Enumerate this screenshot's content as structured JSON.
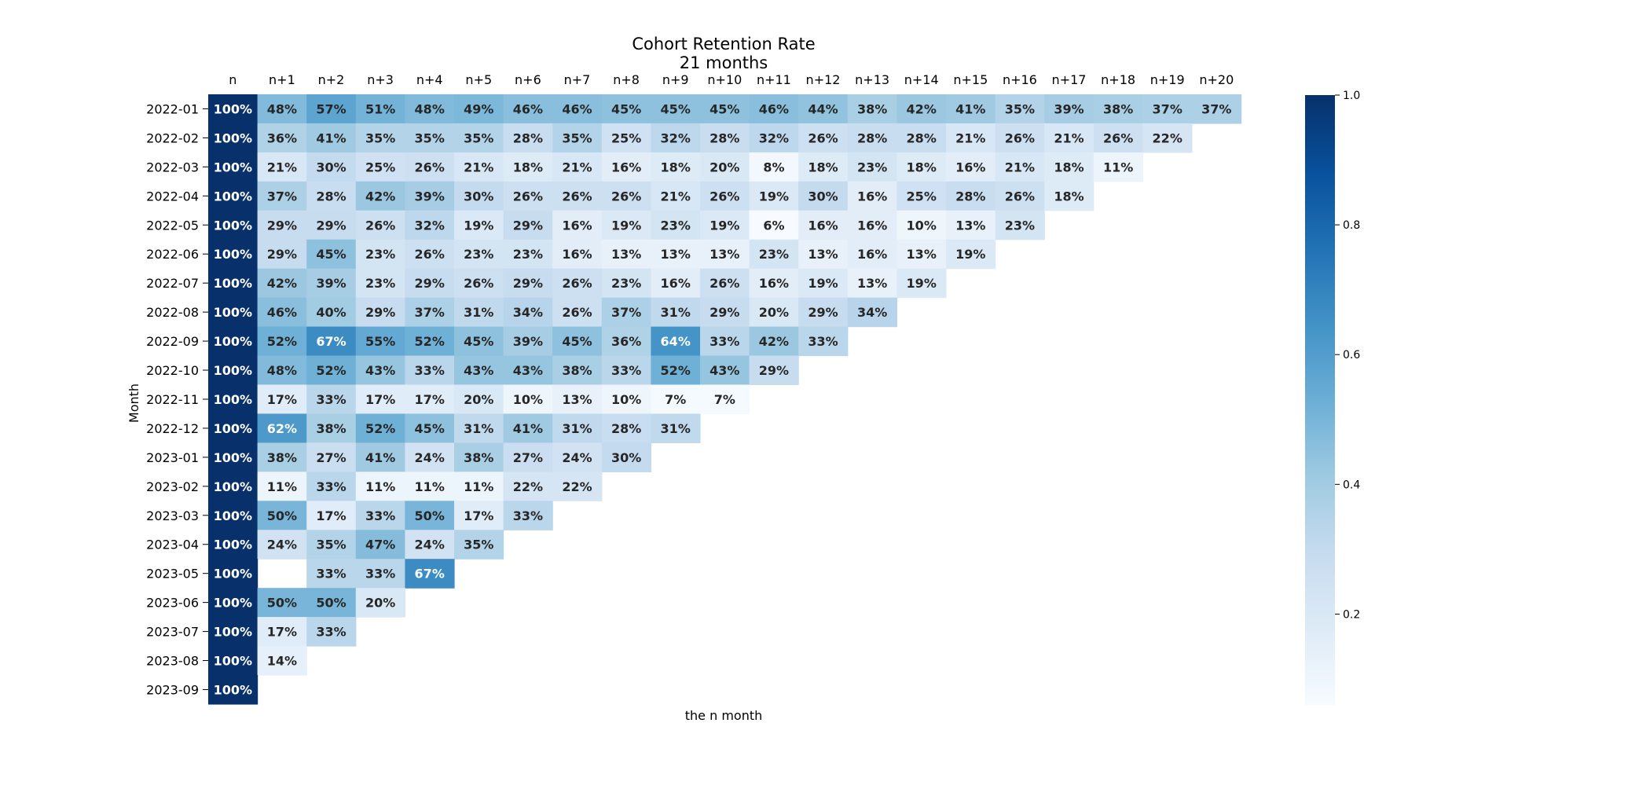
{
  "chart_data": {
    "type": "heatmap",
    "title": "Cohort Retention Rate",
    "subtitle": "21 months",
    "xlabel": "the n month",
    "ylabel": "Month",
    "colormap": "Blues",
    "value_range": [
      0.06,
      1.0
    ],
    "colorbar_ticks": [
      "0.2",
      "0.4",
      "0.6",
      "0.8",
      "1.0"
    ],
    "colorbar_tick_values": [
      0.2,
      0.4,
      0.6,
      0.8,
      1.0
    ],
    "x_labels": [
      "n",
      "n+1",
      "n+2",
      "n+3",
      "n+4",
      "n+5",
      "n+6",
      "n+7",
      "n+8",
      "n+9",
      "n+10",
      "n+11",
      "n+12",
      "n+13",
      "n+14",
      "n+15",
      "n+16",
      "n+17",
      "n+18",
      "n+19",
      "n+20"
    ],
    "y_labels": [
      "2022-01",
      "2022-02",
      "2022-03",
      "2022-04",
      "2022-05",
      "2022-06",
      "2022-07",
      "2022-08",
      "2022-09",
      "2022-10",
      "2022-11",
      "2022-12",
      "2023-01",
      "2023-02",
      "2023-03",
      "2023-04",
      "2023-05",
      "2023-06",
      "2023-07",
      "2023-08",
      "2023-09"
    ],
    "values": [
      [
        100,
        48,
        57,
        51,
        48,
        49,
        46,
        46,
        45,
        45,
        45,
        46,
        44,
        38,
        42,
        41,
        35,
        39,
        38,
        37,
        37
      ],
      [
        100,
        36,
        41,
        35,
        35,
        35,
        28,
        35,
        25,
        32,
        28,
        32,
        26,
        28,
        28,
        21,
        26,
        21,
        26,
        22
      ],
      [
        100,
        21,
        30,
        25,
        26,
        21,
        18,
        21,
        16,
        18,
        20,
        8,
        18,
        23,
        18,
        16,
        21,
        18,
        11
      ],
      [
        100,
        37,
        28,
        42,
        39,
        30,
        26,
        26,
        26,
        21,
        26,
        19,
        30,
        16,
        25,
        28,
        26,
        18
      ],
      [
        100,
        29,
        29,
        26,
        32,
        19,
        29,
        16,
        19,
        23,
        19,
        6,
        16,
        16,
        10,
        13,
        23
      ],
      [
        100,
        29,
        45,
        23,
        26,
        23,
        23,
        16,
        13,
        13,
        13,
        23,
        13,
        16,
        13,
        19
      ],
      [
        100,
        42,
        39,
        23,
        29,
        26,
        29,
        26,
        23,
        16,
        26,
        16,
        19,
        13,
        19
      ],
      [
        100,
        46,
        40,
        29,
        37,
        31,
        34,
        26,
        37,
        31,
        29,
        20,
        29,
        34
      ],
      [
        100,
        52,
        67,
        55,
        52,
        45,
        39,
        45,
        36,
        64,
        33,
        42,
        33
      ],
      [
        100,
        48,
        52,
        43,
        33,
        43,
        43,
        38,
        33,
        52,
        43,
        29
      ],
      [
        100,
        17,
        33,
        17,
        17,
        20,
        10,
        13,
        10,
        7,
        7
      ],
      [
        100,
        62,
        38,
        52,
        45,
        31,
        41,
        31,
        28,
        31
      ],
      [
        100,
        38,
        27,
        41,
        24,
        38,
        27,
        24,
        30
      ],
      [
        100,
        11,
        33,
        11,
        11,
        11,
        22,
        22
      ],
      [
        100,
        50,
        17,
        33,
        50,
        17,
        33
      ],
      [
        100,
        24,
        35,
        47,
        24,
        35
      ],
      [
        100,
        null,
        33,
        33,
        67
      ],
      [
        100,
        50,
        50,
        20
      ],
      [
        100,
        17,
        33
      ],
      [
        100,
        14
      ],
      [
        100
      ]
    ]
  }
}
